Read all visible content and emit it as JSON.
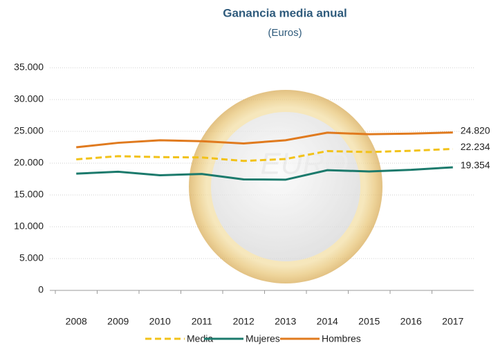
{
  "chart_data": {
    "type": "line",
    "title": "Ganancia media anual",
    "subtitle": "(Euros)",
    "categories": [
      "2008",
      "2009",
      "2010",
      "2011",
      "2012",
      "2013",
      "2014",
      "2015",
      "2016",
      "2017"
    ],
    "ylim": [
      0,
      35000
    ],
    "yticks": [
      0,
      {
        "value": 5000,
        "label": "5.000"
      },
      {
        "value": 10000,
        "label": "10.000"
      },
      {
        "value": 15000,
        "label": "15.000"
      },
      {
        "value": 20000,
        "label": "20.000"
      },
      {
        "value": 25000,
        "label": "25.000"
      },
      {
        "value": 30000,
        "label": "30.000"
      },
      {
        "value": 35000,
        "label": "35.000"
      }
    ],
    "grid": true,
    "legend": "bottom",
    "series": [
      {
        "name": "Media",
        "color": "#f2c218",
        "line_style": "dashed",
        "values": [
          20600,
          21100,
          20950,
          20900,
          20350,
          20650,
          21900,
          21750,
          21950,
          22234
        ],
        "value_labels": [
          null,
          null,
          null,
          null,
          null,
          null,
          null,
          null,
          null,
          "22.234"
        ]
      },
      {
        "name": "Mujeres",
        "color": "#1b7a6c",
        "line_style": "solid",
        "values": [
          18350,
          18650,
          18100,
          18300,
          17450,
          17400,
          18900,
          18700,
          18950,
          19354
        ],
        "value_labels": [
          null,
          null,
          null,
          null,
          null,
          null,
          null,
          null,
          null,
          "19.354"
        ]
      },
      {
        "name": "Hombres",
        "color": "#e07a1e",
        "line_style": "solid",
        "values": [
          22500,
          23200,
          23600,
          23450,
          23100,
          23600,
          24800,
          24550,
          24650,
          24820
        ],
        "value_labels": [
          null,
          null,
          null,
          null,
          null,
          null,
          null,
          null,
          null,
          "24.820"
        ]
      }
    ]
  }
}
